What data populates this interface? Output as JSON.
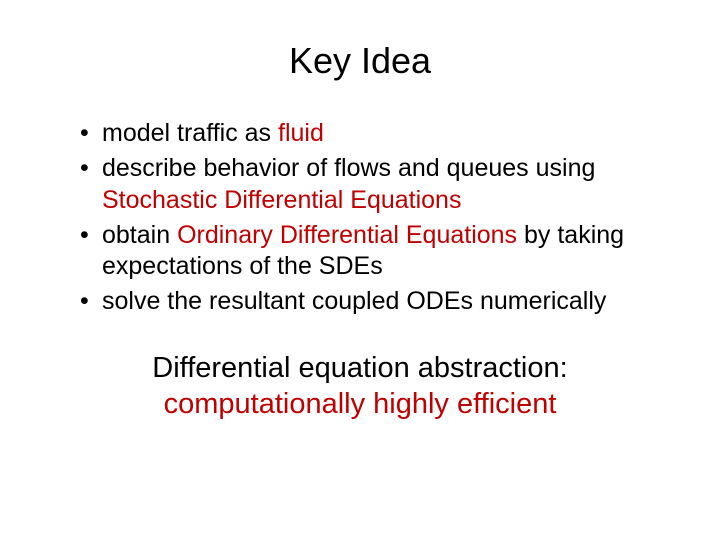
{
  "colors": {
    "background": "#ffffff",
    "text": "#000000",
    "highlight": "#c00000"
  },
  "typography": {
    "font_family": "Comic Sans MS",
    "title_fontsize": 36,
    "bullet_fontsize": 25,
    "footer_fontsize": 29
  },
  "title": "Key Idea",
  "bullets": [
    {
      "pre": "model traffic as ",
      "hl": "fluid",
      "post": ""
    },
    {
      "pre": "describe behavior of flows and queues using ",
      "hl": "Stochastic Differential Equations",
      "post": ""
    },
    {
      "pre": "obtain ",
      "hl": "Ordinary Differential Equations",
      "post": " by taking expectations of the SDEs"
    },
    {
      "pre": "solve the resultant coupled ODEs numerically",
      "hl": "",
      "post": ""
    }
  ],
  "footer": {
    "line1": "Differential equation abstraction:",
    "line2_hl": "computationally highly efficient"
  }
}
